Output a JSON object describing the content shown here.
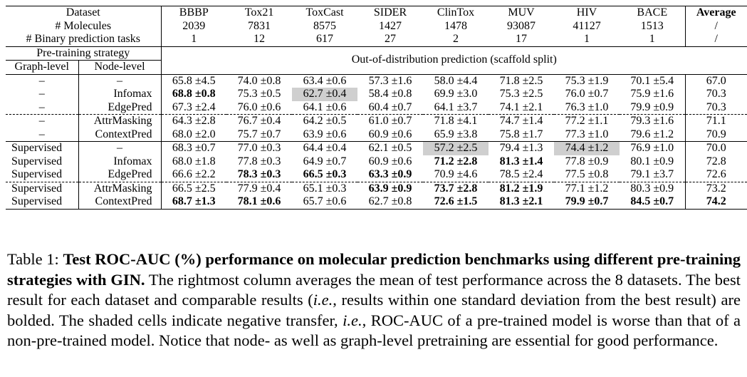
{
  "table": {
    "dataset_header": "Dataset",
    "datasets": [
      "BBBP",
      "Tox21",
      "ToxCast",
      "SIDER",
      "ClinTox",
      "MUV",
      "HIV",
      "BACE"
    ],
    "average_header": "Average",
    "molecules_label": "# Molecules",
    "molecules": [
      "2039",
      "7831",
      "8575",
      "1427",
      "1478",
      "93087",
      "41127",
      "1513"
    ],
    "molecules_avg": "/",
    "tasks_label": "# Binary prediction tasks",
    "tasks": [
      "1",
      "12",
      "617",
      "27",
      "2",
      "17",
      "1",
      "1"
    ],
    "tasks_avg": "/",
    "pretraining_header": "Pre-training strategy",
    "graph_level_header": "Graph-level",
    "node_level_header": "Node-level",
    "ood_header": "Out-of-distribution prediction (scaffold split)",
    "rows": [
      {
        "graph": "–",
        "node": "–",
        "avg": "67.0",
        "cells": [
          {
            "v": "65.8 ±4.5"
          },
          {
            "v": "74.0 ±0.8"
          },
          {
            "v": "63.4 ±0.6"
          },
          {
            "v": "57.3 ±1.6"
          },
          {
            "v": "58.0 ±4.4"
          },
          {
            "v": "71.8 ±2.5"
          },
          {
            "v": "75.3 ±1.9"
          },
          {
            "v": "70.1 ±5.4"
          }
        ]
      },
      {
        "graph": "–",
        "node": "Infomax",
        "avg": "70.3",
        "cells": [
          {
            "v": "68.8 ±0.8",
            "b": true
          },
          {
            "v": "75.3 ±0.5"
          },
          {
            "v": "62.7 ±0.4",
            "s": true
          },
          {
            "v": "58.4 ±0.8"
          },
          {
            "v": "69.9 ±3.0"
          },
          {
            "v": "75.3 ±2.5"
          },
          {
            "v": "76.0 ±0.7"
          },
          {
            "v": "75.9 ±1.6"
          }
        ]
      },
      {
        "graph": "–",
        "node": "EdgePred",
        "avg": "70.3",
        "cells": [
          {
            "v": "67.3 ±2.4"
          },
          {
            "v": "76.0 ±0.6"
          },
          {
            "v": "64.1 ±0.6"
          },
          {
            "v": "60.4 ±0.7"
          },
          {
            "v": "64.1 ±3.7"
          },
          {
            "v": "74.1 ±2.1"
          },
          {
            "v": "76.3 ±1.0"
          },
          {
            "v": "79.9 ±0.9"
          }
        ]
      },
      {
        "graph": "–",
        "node": "AttrMasking",
        "avg": "71.1",
        "cells": [
          {
            "v": "64.3 ±2.8"
          },
          {
            "v": "76.7 ±0.4"
          },
          {
            "v": "64.2 ±0.5"
          },
          {
            "v": "61.0 ±0.7"
          },
          {
            "v": "71.8 ±4.1"
          },
          {
            "v": "74.7 ±1.4"
          },
          {
            "v": "77.2 ±1.1"
          },
          {
            "v": "79.3 ±1.6"
          }
        ]
      },
      {
        "graph": "–",
        "node": "ContextPred",
        "avg": "70.9",
        "cells": [
          {
            "v": "68.0 ±2.0"
          },
          {
            "v": "75.7 ±0.7"
          },
          {
            "v": "63.9 ±0.6"
          },
          {
            "v": "60.9 ±0.6"
          },
          {
            "v": "65.9 ±3.8"
          },
          {
            "v": "75.8 ±1.7"
          },
          {
            "v": "77.3 ±1.0"
          },
          {
            "v": "79.6 ±1.2"
          }
        ]
      },
      {
        "graph": "Supervised",
        "node": "–",
        "avg": "70.0",
        "cells": [
          {
            "v": "68.3 ±0.7"
          },
          {
            "v": "77.0 ±0.3"
          },
          {
            "v": "64.4 ±0.4"
          },
          {
            "v": "62.1 ±0.5"
          },
          {
            "v": "57.2 ±2.5",
            "s": true
          },
          {
            "v": "79.4 ±1.3"
          },
          {
            "v": "74.4 ±1.2",
            "s": true
          },
          {
            "v": "76.9 ±1.0"
          }
        ]
      },
      {
        "graph": "Supervised",
        "node": "Infomax",
        "avg": "72.8",
        "cells": [
          {
            "v": "68.0 ±1.8"
          },
          {
            "v": "77.8 ±0.3"
          },
          {
            "v": "64.9 ±0.7"
          },
          {
            "v": "60.9 ±0.6"
          },
          {
            "v": "71.2 ±2.8",
            "b": true
          },
          {
            "v": "81.3 ±1.4",
            "b": true
          },
          {
            "v": "77.8 ±0.9"
          },
          {
            "v": "80.1 ±0.9"
          }
        ]
      },
      {
        "graph": "Supervised",
        "node": "EdgePred",
        "avg": "72.6",
        "cells": [
          {
            "v": "66.6 ±2.2"
          },
          {
            "v": "78.3 ±0.3",
            "b": true
          },
          {
            "v": "66.5 ±0.3",
            "b": true
          },
          {
            "v": "63.3 ±0.9",
            "b": true
          },
          {
            "v": "70.9 ±4.6"
          },
          {
            "v": "78.5 ±2.4"
          },
          {
            "v": "77.5 ±0.8"
          },
          {
            "v": "79.1 ±3.7"
          }
        ]
      },
      {
        "graph": "Supervised",
        "node": "AttrMasking",
        "avg": "73.2",
        "cells": [
          {
            "v": "66.5 ±2.5"
          },
          {
            "v": "77.9 ±0.4"
          },
          {
            "v": "65.1 ±0.3"
          },
          {
            "v": "63.9 ±0.9",
            "b": true
          },
          {
            "v": "73.7 ±2.8",
            "b": true
          },
          {
            "v": "81.2 ±1.9",
            "b": true
          },
          {
            "v": "77.1 ±1.2"
          },
          {
            "v": "80.3 ±0.9"
          }
        ]
      },
      {
        "graph": "Supervised",
        "node": "ContextPred",
        "avg": "74.2",
        "avg_b": true,
        "cells": [
          {
            "v": "68.7 ±1.3",
            "b": true
          },
          {
            "v": "78.1 ±0.6",
            "b": true
          },
          {
            "v": "65.7 ±0.6"
          },
          {
            "v": "62.7 ±0.8"
          },
          {
            "v": "72.6 ±1.5",
            "b": true
          },
          {
            "v": "81.3 ±2.1",
            "b": true
          },
          {
            "v": "79.9 ±0.7",
            "b": true
          },
          {
            "v": "84.5 ±0.7",
            "b": true
          }
        ]
      }
    ]
  },
  "caption": {
    "label": "Table 1: ",
    "title": "Test ROC-AUC (%) performance on molecular prediction benchmarks using different pre-training strategies with GIN.",
    "body_1": " The rightmost column averages the mean of test performance across the 8 datasets. The best result for each dataset and comparable results (",
    "ie_1": "i.e.",
    "body_2": ", results within one standard deviation from the best result) are bolded. The shaded cells indicate negative transfer, ",
    "ie_2": "i.e.",
    "body_3": ", ROC-AUC of a pre-trained model is worse than that of a non-pre-trained model. Notice that node- as well as graph-level pretraining are essential for good performance."
  }
}
